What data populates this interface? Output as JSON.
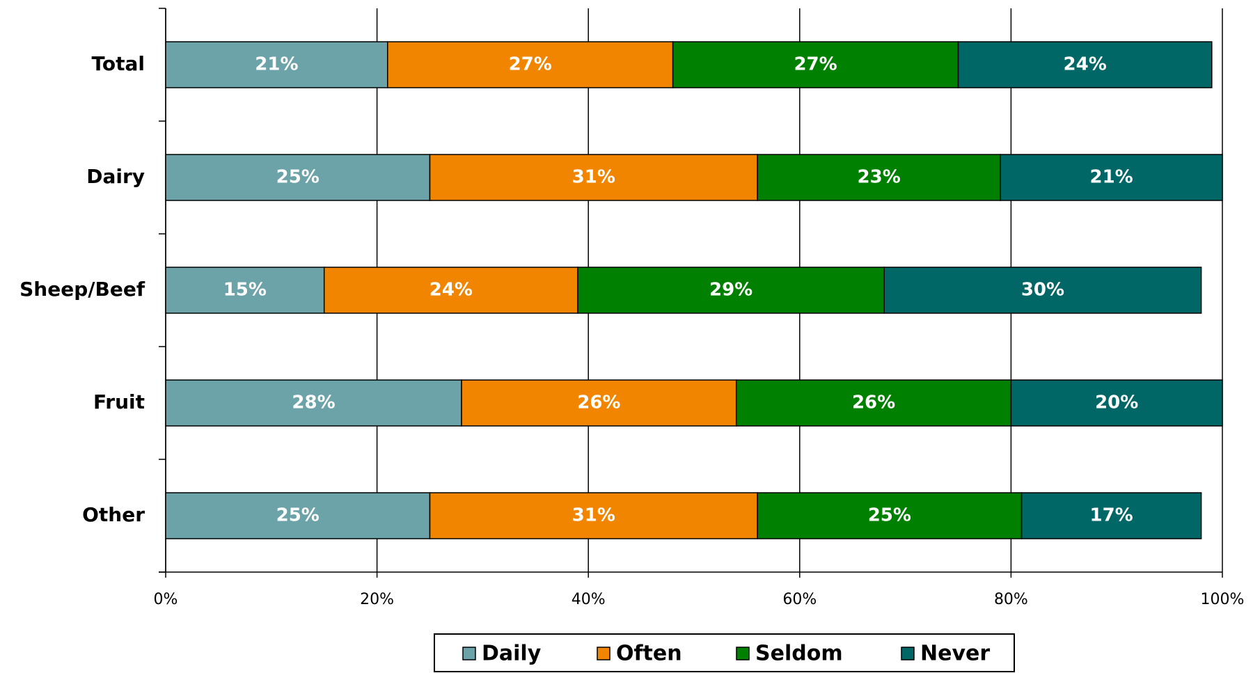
{
  "chart_data": {
    "type": "stacked-bar-horizontal",
    "categories": [
      "Total",
      "Dairy",
      "Sheep/Beef",
      "Fruit",
      "Other"
    ],
    "series": [
      {
        "name": "Daily",
        "color": "#6ca3a8",
        "values": [
          21,
          25,
          15,
          28,
          25
        ],
        "value_labels": [
          "21%",
          "25%",
          "15%",
          "28%",
          "25%"
        ]
      },
      {
        "name": "Often",
        "color": "#f28500",
        "values": [
          27,
          31,
          24,
          26,
          31
        ],
        "value_labels": [
          "27%",
          "31%",
          "24%",
          "26%",
          "31%"
        ]
      },
      {
        "name": "Seldom",
        "color": "#008000",
        "values": [
          27,
          23,
          29,
          26,
          25
        ],
        "value_labels": [
          "27%",
          "23%",
          "29%",
          "26%",
          "25%"
        ]
      },
      {
        "name": "Never",
        "color": "#006666",
        "values": [
          24,
          21,
          30,
          20,
          17
        ],
        "value_labels": [
          "24%",
          "21%",
          "30%",
          "20%",
          "17%"
        ]
      }
    ],
    "xlim": [
      0,
      100
    ],
    "xticks": [
      {
        "value": 0,
        "label": "0%"
      },
      {
        "value": 20,
        "label": "20%"
      },
      {
        "value": 40,
        "label": "40%"
      },
      {
        "value": 60,
        "label": "60%"
      },
      {
        "value": 80,
        "label": "80%"
      },
      {
        "value": 100,
        "label": "100%"
      }
    ],
    "grid": true,
    "legend": "bottom"
  }
}
